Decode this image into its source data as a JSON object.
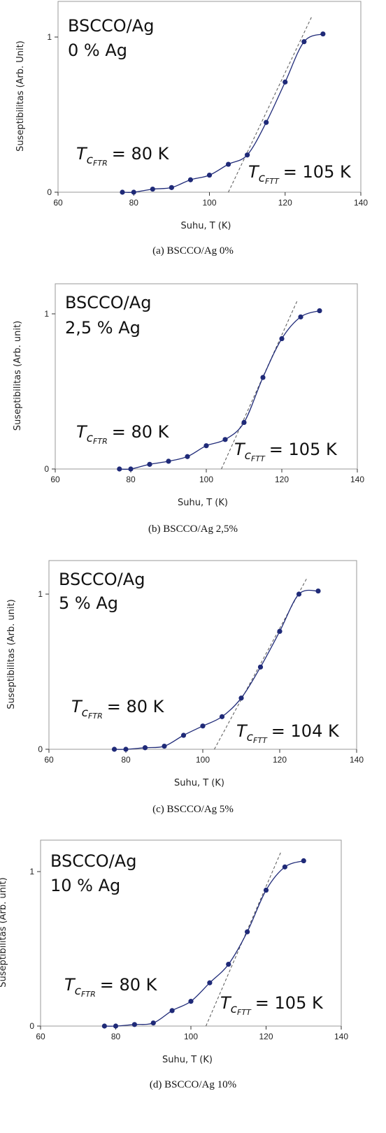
{
  "chart_data": [
    {
      "type": "line",
      "caption": "(a) BSCCO/Ag 0%",
      "sample": "BSCCO/Ag",
      "composition": "0 % Ag",
      "xlabel": "Suhu, T (K)",
      "ylabel": "Suseptibilitas (Arb. Unit)",
      "xlim": [
        60,
        140
      ],
      "ylim": [
        0,
        1.15
      ],
      "xticks": [
        "60",
        "80",
        "100",
        "120",
        "140"
      ],
      "yticks": [
        "0",
        "1"
      ],
      "x": [
        77,
        80,
        85,
        90,
        95,
        100,
        105,
        110,
        115,
        120,
        125,
        130
      ],
      "y": [
        0.0,
        0.0,
        0.02,
        0.03,
        0.08,
        0.11,
        0.18,
        0.24,
        0.45,
        0.71,
        0.97,
        1.02
      ],
      "tangent": [
        [
          105,
          0.0
        ],
        [
          127,
          1.13
        ]
      ],
      "tc_onset_label": {
        "symbol": "T",
        "sub1": "c",
        "sub2": "FTR",
        "value": "= 80 K"
      },
      "tc_zero_label": {
        "symbol": "T",
        "sub1": "c",
        "sub2": "FTT",
        "value": "= 105 K"
      }
    },
    {
      "type": "line",
      "caption": "(b) BSCCO/Ag 2,5%",
      "sample": "BSCCO/Ag",
      "composition": "2,5 % Ag",
      "xlabel": "Suhu, T (K)",
      "ylabel": "Suseptibilitas (Arb. unit)",
      "xlim": [
        60,
        140
      ],
      "ylim": [
        0,
        1.15
      ],
      "xticks": [
        "60",
        "80",
        "100",
        "120",
        "140"
      ],
      "yticks": [
        "0",
        "1"
      ],
      "x": [
        77,
        80,
        85,
        90,
        95,
        100,
        105,
        110,
        115,
        120,
        125,
        130
      ],
      "y": [
        0.0,
        0.0,
        0.03,
        0.05,
        0.08,
        0.15,
        0.19,
        0.3,
        0.59,
        0.84,
        0.98,
        1.02
      ],
      "tangent": [
        [
          104,
          0.0
        ],
        [
          124,
          1.08
        ]
      ],
      "tc_onset_label": {
        "symbol": "T",
        "sub1": "c",
        "sub2": "FTR",
        "value": "= 80 K"
      },
      "tc_zero_label": {
        "symbol": "T",
        "sub1": "c",
        "sub2": "FTT",
        "value": "= 105 K"
      }
    },
    {
      "type": "line",
      "caption": "(c) BSCCO/Ag 5%",
      "sample": "BSCCO/Ag",
      "composition": "5 % Ag",
      "xlabel": "Suhu, T (K)",
      "ylabel": "Suseptibilitas (Arb. unit)",
      "xlim": [
        60,
        140
      ],
      "ylim": [
        0,
        1.15
      ],
      "xticks": [
        "60",
        "80",
        "100",
        "120",
        "140"
      ],
      "yticks": [
        "0",
        "1"
      ],
      "x": [
        77,
        80,
        85,
        90,
        95,
        100,
        105,
        110,
        115,
        120,
        125,
        130
      ],
      "y": [
        0.0,
        0.0,
        0.01,
        0.02,
        0.09,
        0.15,
        0.21,
        0.33,
        0.53,
        0.76,
        1.0,
        1.02
      ],
      "tangent": [
        [
          103,
          0.0
        ],
        [
          127,
          1.1
        ]
      ],
      "tc_onset_label": {
        "symbol": "T",
        "sub1": "c",
        "sub2": "FTR",
        "value": "= 80 K"
      },
      "tc_zero_label": {
        "symbol": "T",
        "sub1": "c",
        "sub2": "FTT",
        "value": "= 104 K"
      }
    },
    {
      "type": "line",
      "caption": "(d) BSCCO/Ag 10%",
      "sample": "BSCCO/Ag",
      "composition": "10 % Ag",
      "xlabel": "Suhu, T (K)",
      "ylabel": "Suseptibilitas (Arb. unit)",
      "xlim": [
        60,
        140
      ],
      "ylim": [
        0,
        1.2
      ],
      "xticks": [
        "60",
        "80",
        "100",
        "120",
        "140"
      ],
      "yticks": [
        "0",
        "1"
      ],
      "x": [
        77,
        80,
        85,
        90,
        95,
        100,
        105,
        110,
        115,
        120,
        125,
        130
      ],
      "y": [
        0.0,
        0.0,
        0.01,
        0.02,
        0.1,
        0.16,
        0.28,
        0.4,
        0.61,
        0.88,
        1.03,
        1.07
      ],
      "tangent": [
        [
          104,
          0.0
        ],
        [
          124,
          1.13
        ]
      ],
      "tc_onset_label": {
        "symbol": "T",
        "sub1": "c",
        "sub2": "FTR",
        "value": "= 80 K"
      },
      "tc_zero_label": {
        "symbol": "T",
        "sub1": "c",
        "sub2": "FTT",
        "value": "= 105 K"
      }
    }
  ],
  "colors": {
    "marker": "#1f2a78",
    "curve": "#1f2a78",
    "tangent": "#555555",
    "frame": "#999999"
  }
}
